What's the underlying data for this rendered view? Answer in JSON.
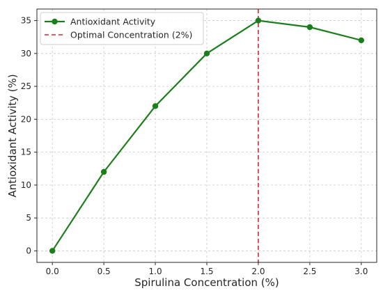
{
  "chart_data": {
    "type": "line",
    "xlabel": "Spirulina Concentration (%)",
    "ylabel": "Antioxidant Activity (%)",
    "xlim": [
      -0.15,
      3.15
    ],
    "ylim": [
      -1.75,
      36.75
    ],
    "xticks": [
      0.0,
      0.5,
      1.0,
      1.5,
      2.0,
      2.5,
      3.0
    ],
    "xtick_labels": [
      "0.0",
      "0.5",
      "1.0",
      "1.5",
      "2.0",
      "2.5",
      "3.0"
    ],
    "yticks": [
      0,
      5,
      10,
      15,
      20,
      25,
      30,
      35
    ],
    "ytick_labels": [
      "0",
      "5",
      "10",
      "15",
      "20",
      "25",
      "30",
      "35"
    ],
    "grid": true,
    "legend_position": "upper-left",
    "series": [
      {
        "name": "Antioxidant Activity",
        "color": "#1a7f1a",
        "marker": "circle",
        "x": [
          0.0,
          0.5,
          1.0,
          1.5,
          2.0,
          2.5,
          3.0
        ],
        "y": [
          0,
          12,
          22,
          30,
          35,
          34,
          32
        ]
      }
    ],
    "reference_lines": [
      {
        "name": "Optimal Concentration (2%)",
        "orientation": "vertical",
        "x": 2.0,
        "color": "#d62728",
        "style": "dashed"
      }
    ]
  }
}
